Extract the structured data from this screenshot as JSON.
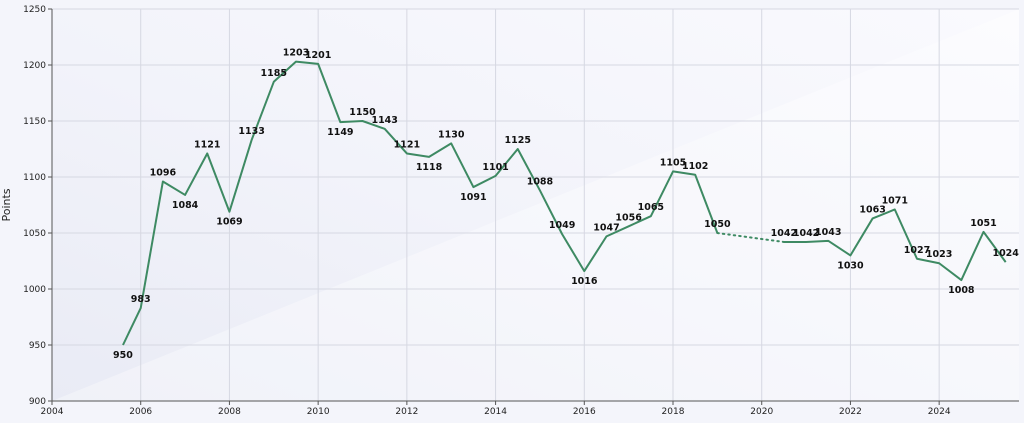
{
  "chart_data": {
    "type": "line",
    "title": "",
    "xlabel": "",
    "ylabel": "Points",
    "xlim": [
      2004,
      2025.8
    ],
    "ylim": [
      900,
      1250
    ],
    "xticks": [
      2004,
      2006,
      2008,
      2010,
      2012,
      2014,
      2016,
      2018,
      2020,
      2022,
      2024
    ],
    "yticks": [
      900,
      950,
      1000,
      1050,
      1100,
      1150,
      1200,
      1250
    ],
    "grid": true,
    "legend": "none",
    "line_color": "#3e8a63",
    "gap_style": "dotted",
    "series": [
      {
        "points": [
          {
            "x": 2005.6,
            "y": 950
          },
          {
            "x": 2006.0,
            "y": 983
          },
          {
            "x": 2006.5,
            "y": 1096
          },
          {
            "x": 2007.0,
            "y": 1084
          },
          {
            "x": 2007.5,
            "y": 1121
          },
          {
            "x": 2008.0,
            "y": 1069
          },
          {
            "x": 2008.5,
            "y": 1133
          },
          {
            "x": 2009.0,
            "y": 1185
          },
          {
            "x": 2009.5,
            "y": 1203
          },
          {
            "x": 2010.0,
            "y": 1201
          },
          {
            "x": 2010.5,
            "y": 1149
          },
          {
            "x": 2011.0,
            "y": 1150
          },
          {
            "x": 2011.5,
            "y": 1143
          },
          {
            "x": 2012.0,
            "y": 1121
          },
          {
            "x": 2012.5,
            "y": 1118
          },
          {
            "x": 2013.0,
            "y": 1130
          },
          {
            "x": 2013.5,
            "y": 1091
          },
          {
            "x": 2014.0,
            "y": 1101
          },
          {
            "x": 2014.5,
            "y": 1125
          },
          {
            "x": 2015.0,
            "y": 1088
          },
          {
            "x": 2015.5,
            "y": 1049
          },
          {
            "x": 2016.0,
            "y": 1016
          },
          {
            "x": 2016.5,
            "y": 1047
          },
          {
            "x": 2017.0,
            "y": 1056
          },
          {
            "x": 2017.5,
            "y": 1065
          },
          {
            "x": 2018.0,
            "y": 1105
          },
          {
            "x": 2018.5,
            "y": 1102
          },
          {
            "x": 2019.0,
            "y": 1050
          },
          {
            "x": 2020.5,
            "y": 1042
          },
          {
            "x": 2021.0,
            "y": 1042
          },
          {
            "x": 2021.5,
            "y": 1043
          },
          {
            "x": 2022.0,
            "y": 1030
          },
          {
            "x": 2022.5,
            "y": 1063
          },
          {
            "x": 2023.0,
            "y": 1071
          },
          {
            "x": 2023.5,
            "y": 1027
          },
          {
            "x": 2024.0,
            "y": 1023
          },
          {
            "x": 2024.5,
            "y": 1008
          },
          {
            "x": 2025.0,
            "y": 1051
          },
          {
            "x": 2025.5,
            "y": 1024
          }
        ]
      }
    ],
    "gaps": [
      {
        "from": 2019.0,
        "to": 2020.5
      }
    ]
  }
}
